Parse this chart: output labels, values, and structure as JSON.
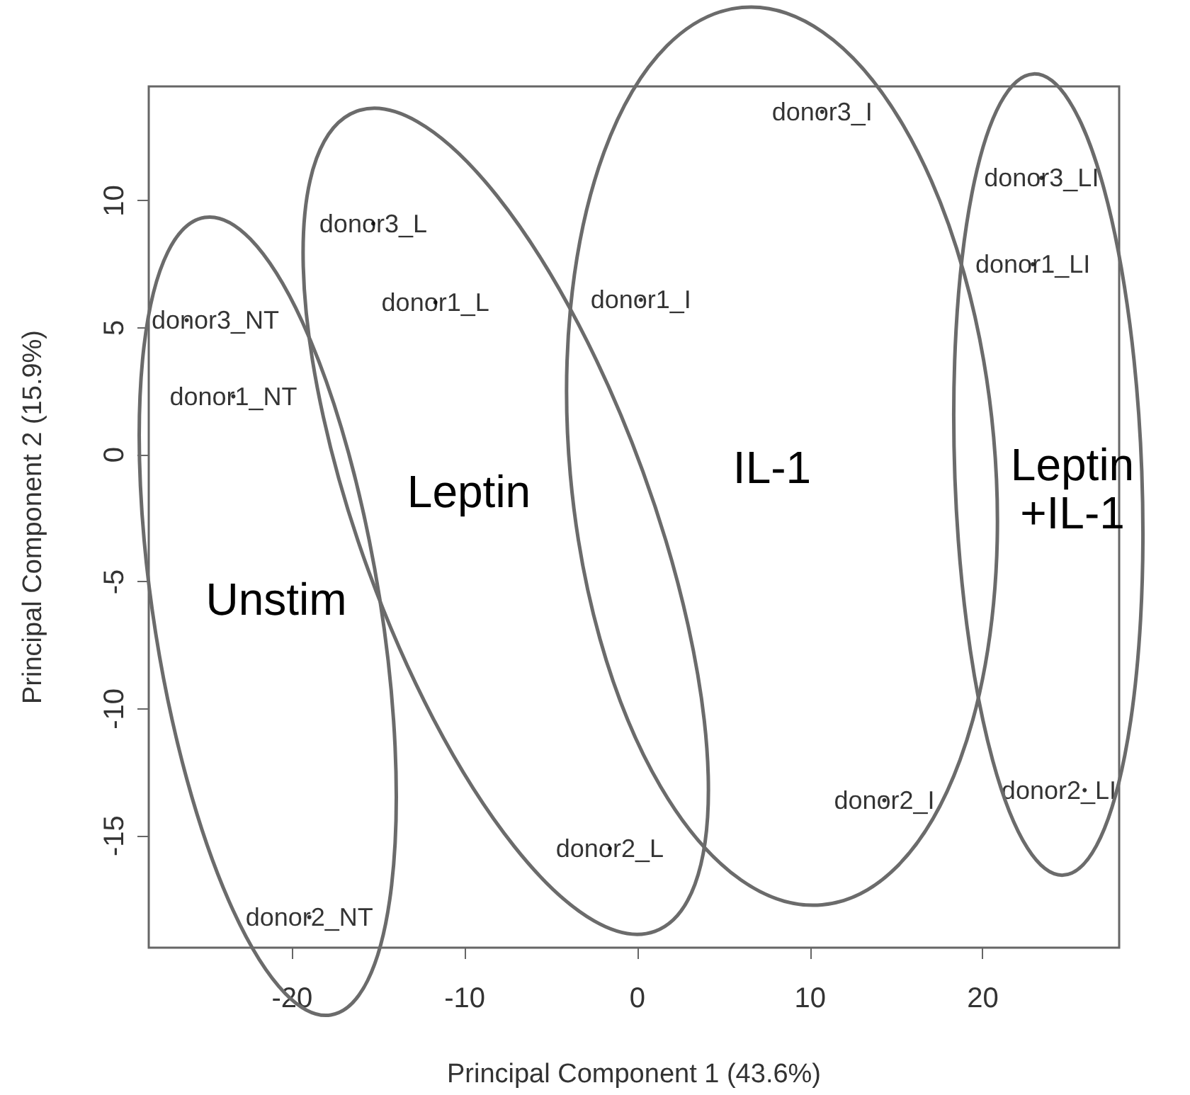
{
  "chart_data": {
    "type": "scatter",
    "xlabel": "Principal Component 1 (43.6%)",
    "ylabel": "Principal Component 2 (15.9%)",
    "annotations": [
      "Unstim",
      "Leptin",
      "IL-1",
      "Leptin +IL-1"
    ],
    "x": [
      -26.1,
      -23.4,
      -19.0,
      -15.3,
      -11.7,
      -1.6,
      10.7,
      0.2,
      14.3,
      23.4,
      22.9,
      25.9
    ],
    "values": [
      5.3,
      2.3,
      -18.2,
      9.1,
      6.0,
      -15.5,
      13.5,
      6.1,
      -13.6,
      10.9,
      7.5,
      -13.2
    ],
    "value_labels": [
      "donor3_NT",
      "donor1_NT",
      "donor2_NT",
      "donor3_L",
      "donor1_L",
      "donor2_L",
      "donor3_I",
      "donor1_I",
      "donor2_I",
      "donor3_LI",
      "donor1_LI",
      "donor2_LI"
    ],
    "color": "#000000",
    "marker": "circle",
    "xlim": [
      -28.3,
      27.9
    ],
    "ylim": [
      -19.4,
      14.5
    ],
    "xticks": [
      -20,
      -10,
      0,
      10,
      20
    ],
    "yticks": [
      -15,
      -10,
      -5,
      0,
      5,
      10
    ]
  }
}
